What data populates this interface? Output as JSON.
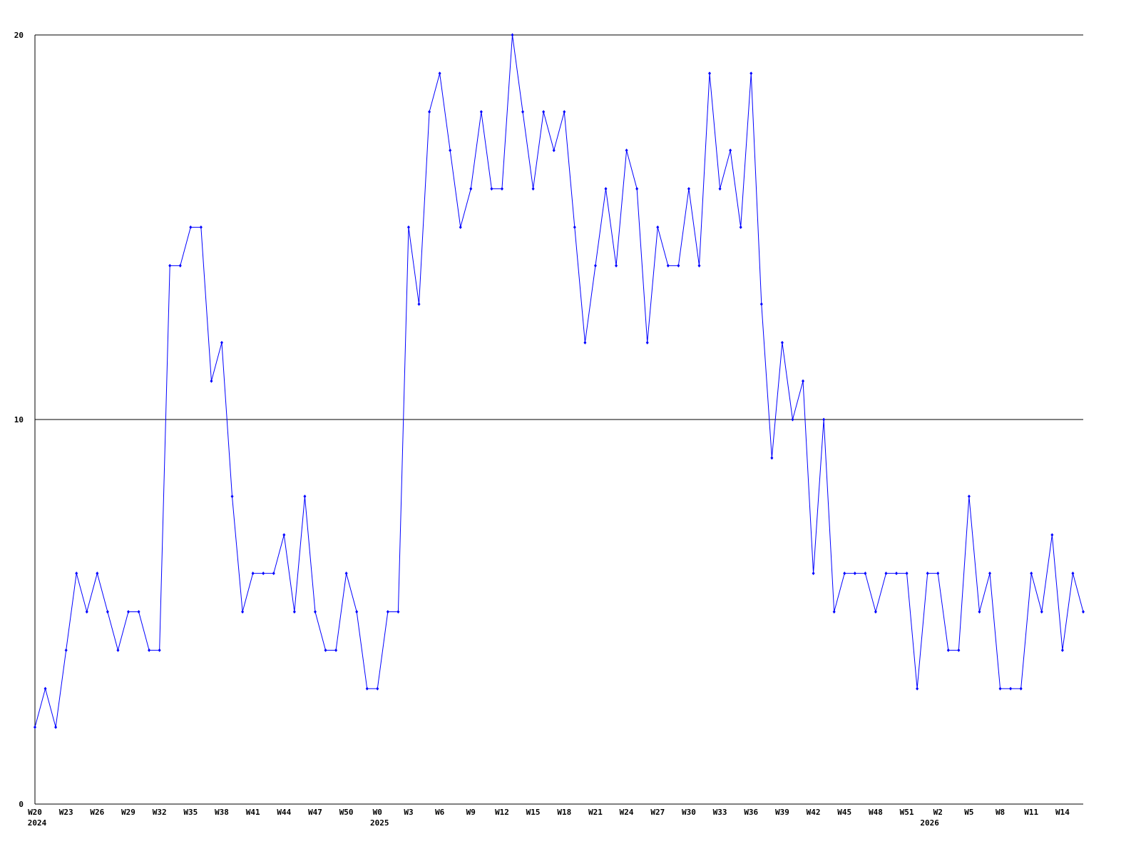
{
  "chart_data": {
    "type": "line",
    "categories": [
      "W20",
      null,
      null,
      "W23",
      null,
      null,
      "W26",
      null,
      null,
      "W29",
      null,
      null,
      "W32",
      null,
      null,
      "W35",
      null,
      null,
      "W38",
      null,
      null,
      "W41",
      null,
      null,
      "W44",
      null,
      null,
      "W47",
      null,
      null,
      "W50",
      null,
      null,
      "W0",
      null,
      null,
      "W3",
      null,
      null,
      "W6",
      null,
      null,
      "W9",
      null,
      null,
      "W12",
      null,
      null,
      "W15",
      null,
      null,
      "W18",
      null,
      null,
      "W21",
      null,
      null,
      "W24",
      null,
      null,
      "W27",
      null,
      null,
      "W30",
      null,
      null,
      "W33",
      null,
      null,
      "W36",
      null,
      null,
      "W39",
      null,
      null,
      "W42",
      null,
      null,
      "W45",
      null,
      null,
      "W48",
      null,
      null,
      "W51",
      null,
      null,
      "W2",
      null,
      null,
      "W5",
      null,
      null,
      "W8",
      null,
      null,
      "W11",
      null,
      null,
      "W14",
      null,
      null
    ],
    "year_labels": [
      {
        "label": "2024",
        "at": 0
      },
      {
        "label": "2025",
        "at": 33
      },
      {
        "label": "2026",
        "at": 86
      }
    ],
    "series": [
      {
        "color": "#0000ff",
        "values": [
          2,
          3,
          2,
          4,
          6,
          5,
          6,
          5,
          4,
          5,
          5,
          4,
          4,
          14,
          14,
          15,
          15,
          11,
          12,
          8,
          5,
          6,
          6,
          6,
          7,
          5,
          8,
          5,
          4,
          4,
          6,
          5,
          3,
          3,
          5,
          5,
          15,
          13,
          18,
          19,
          17,
          15,
          16,
          18,
          16,
          16,
          20,
          18,
          16,
          18,
          17,
          18,
          15,
          12,
          14,
          16,
          14,
          17,
          16,
          12,
          15,
          14,
          14,
          16,
          14,
          19,
          16,
          17,
          15,
          19,
          13,
          9,
          12,
          10,
          11,
          6,
          10,
          5,
          6,
          6,
          6,
          5,
          6,
          6,
          6,
          3,
          6,
          6,
          4,
          4,
          8,
          5,
          6,
          3,
          3,
          3,
          6,
          5,
          7,
          4,
          6,
          5
        ]
      }
    ],
    "ylim": [
      0,
      20
    ],
    "yticks": [
      0,
      10,
      20
    ],
    "grid": true
  }
}
